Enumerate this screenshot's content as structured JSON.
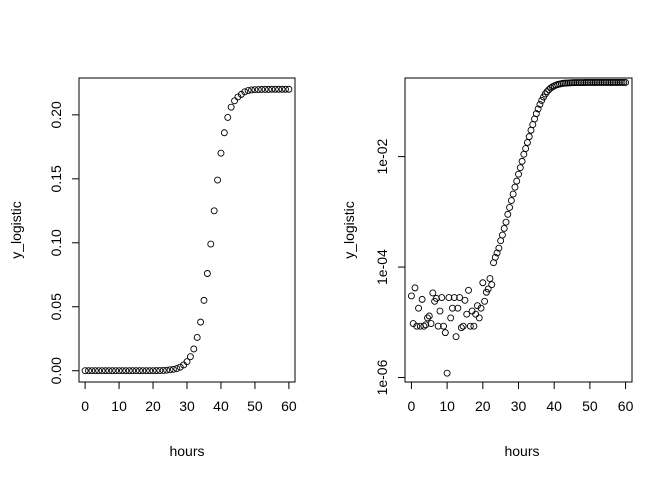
{
  "chart_data": [
    {
      "type": "scatter",
      "xlabel": "hours",
      "ylabel": "y_logistic",
      "y_scale": "linear",
      "xlim": [
        -1.8,
        61.8
      ],
      "ylim": [
        -0.0088,
        0.2288
      ],
      "xticks": [
        0,
        10,
        20,
        30,
        40,
        50,
        60
      ],
      "xtick_labels": [
        "0",
        "10",
        "20",
        "30",
        "40",
        "50",
        "60"
      ],
      "yticks": [
        0,
        0.05,
        0.1,
        0.15,
        0.2
      ],
      "ytick_labels": [
        "0.00",
        "0.05",
        "0.10",
        "0.15",
        "0.20"
      ],
      "grid": false,
      "legend": "none",
      "x": [
        0,
        1,
        2,
        3,
        4,
        5,
        6,
        7,
        8,
        9,
        10,
        11,
        12,
        13,
        14,
        15,
        16,
        17,
        18,
        19,
        20,
        21,
        22,
        23,
        24,
        25,
        26,
        27,
        28,
        29,
        30,
        31,
        32,
        33,
        34,
        35,
        36,
        37,
        38,
        39,
        40,
        41,
        42,
        43,
        44,
        45,
        46,
        47,
        48,
        49,
        50,
        51,
        52,
        53,
        54,
        55,
        56,
        57,
        58,
        59,
        60
      ],
      "y": [
        1e-05,
        1e-05,
        1e-05,
        1e-05,
        1e-05,
        1e-05,
        1e-05,
        1e-05,
        1e-05,
        1e-05,
        1e-05,
        1e-05,
        1e-05,
        1e-05,
        1e-05,
        1e-05,
        1e-05,
        1e-05,
        2e-05,
        4e-05,
        6e-05,
        0.0001,
        0.00016,
        0.00026,
        0.0004,
        0.0007,
        0.0011,
        0.0017,
        0.0028,
        0.0045,
        0.0071,
        0.011,
        0.017,
        0.026,
        0.038,
        0.055,
        0.076,
        0.099,
        0.125,
        0.149,
        0.17,
        0.186,
        0.198,
        0.206,
        0.211,
        0.214,
        0.216,
        0.218,
        0.219,
        0.2195,
        0.2197,
        0.2198,
        0.2199,
        0.2199,
        0.2199,
        0.22,
        0.22,
        0.22,
        0.22,
        0.22,
        0.22
      ]
    },
    {
      "type": "scatter",
      "xlabel": "hours",
      "ylabel": "y_logistic",
      "y_scale": "log",
      "xlim": [
        -1.8,
        61.8
      ],
      "ylim": [
        8.3e-07,
        0.265
      ],
      "xticks": [
        0,
        10,
        20,
        30,
        40,
        50,
        60
      ],
      "xtick_labels": [
        "0",
        "10",
        "20",
        "30",
        "40",
        "50",
        "60"
      ],
      "yticks": [
        1e-06,
        0.0001,
        0.01
      ],
      "ytick_labels": [
        "1e-06",
        "1e-04",
        "1e-02"
      ],
      "grid": false,
      "legend": "none",
      "x": [
        0,
        0.5,
        1,
        1.5,
        2,
        2.5,
        3,
        3.5,
        4,
        4.5,
        5,
        5.5,
        6,
        6.5,
        7,
        7.5,
        8,
        8.5,
        9,
        9.5,
        10,
        10.5,
        11,
        11.5,
        12,
        12.5,
        13,
        13.5,
        14,
        14.5,
        15,
        15.5,
        16,
        16.5,
        17,
        17.5,
        18,
        18.5,
        19,
        19.5,
        20,
        20.5,
        21,
        21.5,
        22,
        22.5,
        23,
        23.5,
        24,
        24.5,
        25,
        25.5,
        26,
        26.5,
        27,
        27.5,
        28,
        28.5,
        29,
        29.5,
        30,
        30.5,
        31,
        31.5,
        32,
        32.5,
        33,
        33.5,
        34,
        34.5,
        35,
        35.5,
        36,
        36.5,
        37,
        37.5,
        38,
        38.5,
        39,
        39.5,
        40,
        40.5,
        41,
        41.5,
        42,
        42.5,
        43,
        43.5,
        44,
        44.5,
        45,
        45.5,
        46,
        46.5,
        47,
        47.5,
        48,
        48.5,
        49,
        49.5,
        50,
        50.5,
        51,
        51.5,
        52,
        52.5,
        53,
        53.5,
        54,
        54.5,
        55,
        55.5,
        56,
        56.5,
        57,
        57.5,
        58,
        58.5,
        59,
        59.5,
        60
      ],
      "y": [
        3e-05,
        9.5e-06,
        4.2e-05,
        8.5e-06,
        1.8e-05,
        8.5e-06,
        2.6e-05,
        8.5e-06,
        9e-06,
        1.2e-05,
        1.3e-05,
        9.5e-06,
        3.4e-05,
        2.4e-05,
        2.7e-05,
        8.5e-06,
        1.6e-05,
        2.8e-05,
        8.5e-06,
        6.5e-06,
        1.2e-06,
        2.8e-05,
        1.2e-05,
        1.8e-05,
        2.8e-05,
        5.5e-06,
        1.8e-05,
        2.8e-05,
        8e-06,
        8.5e-06,
        2.5e-05,
        1.4e-05,
        3.8e-05,
        8.5e-06,
        1.6e-05,
        8.5e-06,
        1.4e-05,
        2e-05,
        1.2e-05,
        1.8e-05,
        5.2e-05,
        2.4e-05,
        3.5e-05,
        4e-05,
        6.2e-05,
        4.8e-05,
        0.00012,
        0.00015,
        0.00018,
        0.00022,
        0.0003,
        0.00038,
        0.0005,
        0.00065,
        0.0009,
        0.0012,
        0.0016,
        0.0021,
        0.0028,
        0.0036,
        0.0048,
        0.0063,
        0.0082,
        0.011,
        0.014,
        0.018,
        0.023,
        0.03,
        0.038,
        0.048,
        0.06,
        0.073,
        0.088,
        0.104,
        0.12,
        0.136,
        0.15,
        0.163,
        0.174,
        0.183,
        0.19,
        0.197,
        0.202,
        0.206,
        0.209,
        0.212,
        0.214,
        0.215,
        0.216,
        0.217,
        0.218,
        0.2185,
        0.2188,
        0.219,
        0.2192,
        0.2194,
        0.2195,
        0.2196,
        0.2197,
        0.2198,
        0.2198,
        0.2199,
        0.2199,
        0.2199,
        0.2199,
        0.22,
        0.22,
        0.22,
        0.22,
        0.22,
        0.22,
        0.22,
        0.22,
        0.22,
        0.22,
        0.22,
        0.22,
        0.22,
        0.22,
        0.22,
        0.22
      ]
    }
  ]
}
